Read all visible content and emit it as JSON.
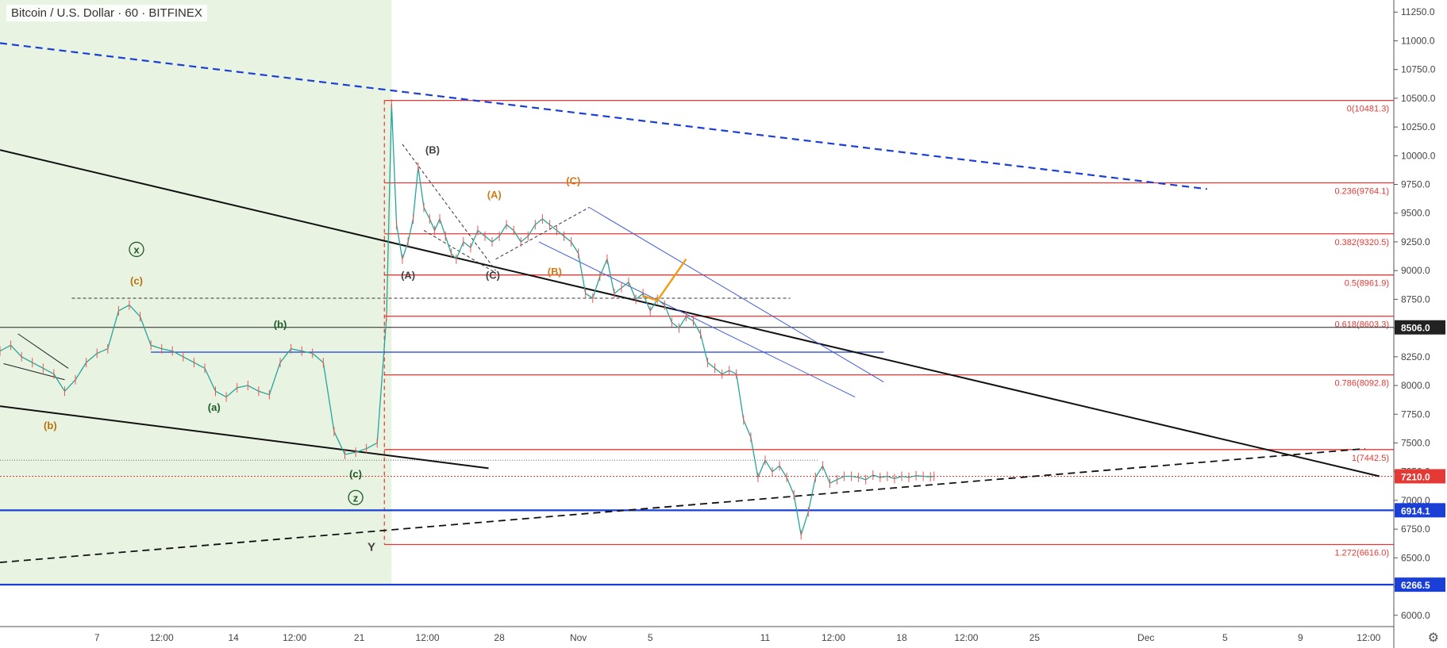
{
  "header": {
    "title": "Bitcoin / U.S. Dollar · 60 · BITFINEX"
  },
  "chart_data": {
    "type": "line",
    "title": "Bitcoin / U.S. Dollar · 60 · BITFINEX",
    "ylim": [
      5950,
      11300
    ],
    "y_ticks": [
      "11250.0",
      "11000.0",
      "10750.0",
      "10500.0",
      "10250.0",
      "10000.0",
      "9750.0",
      "9500.0",
      "9250.0",
      "9000.0",
      "8750.0",
      "8500.0",
      "8250.0",
      "8000.0",
      "7750.0",
      "7500.0",
      "7250.0",
      "7000.0",
      "6750.0",
      "6500.0",
      "6250.0",
      "6000.0"
    ],
    "x_ticks": [
      "7",
      "12:00",
      "14",
      "12:00",
      "21",
      "12:00",
      "28",
      "Nov",
      "5",
      "11",
      "12:00",
      "18",
      "12:00",
      "25",
      "Dec",
      "5",
      "9",
      "12:00"
    ],
    "price_tags": [
      {
        "label": "8506.0",
        "value": 8506.0,
        "color": "#222222"
      },
      {
        "label": "7210.0",
        "value": 7210.0,
        "color": "#e53935"
      },
      {
        "label": "6914.1",
        "value": 6914.1,
        "color": "#1a3fd6"
      },
      {
        "label": "6266.5",
        "value": 6266.5,
        "color": "#1a3fd6"
      }
    ],
    "fib_levels": [
      {
        "label": "0(10481.3)",
        "value": 10481.3
      },
      {
        "label": "0.236(9764.1)",
        "value": 9764.1
      },
      {
        "label": "0.382(9320.5)",
        "value": 9320.5
      },
      {
        "label": "0.5(8961.9)",
        "value": 8961.9
      },
      {
        "label": "0.618(8603.3)",
        "value": 8603.3
      },
      {
        "label": "0.786(8092.8)",
        "value": 8092.8
      },
      {
        "label": "1(7442.5)",
        "value": 7442.5
      },
      {
        "label": "1.272(6616.0)",
        "value": 6616.0
      }
    ],
    "wave_labels": [
      {
        "text": "(b)",
        "color": "#b8720a",
        "x": 0.7,
        "price": 7620
      },
      {
        "text": "(c)",
        "color": "#b8720a",
        "x": 1.9,
        "price": 8880
      },
      {
        "text": "x",
        "color": "#1e5c28",
        "x": 1.9,
        "price": 9150,
        "circled": true
      },
      {
        "text": "(a)",
        "color": "#1e5c28",
        "x": 2.98,
        "price": 7780
      },
      {
        "text": "(b)",
        "color": "#1e5c28",
        "x": 3.9,
        "price": 8500
      },
      {
        "text": "(c)",
        "color": "#1e5c28",
        "x": 4.95,
        "price": 7200
      },
      {
        "text": "z",
        "color": "#1e5c28",
        "x": 4.95,
        "price": 6990,
        "circled": true
      },
      {
        "text": "Y",
        "color": "#444444",
        "x": 5.17,
        "price": 6560
      },
      {
        "text": "(A)",
        "color": "#444444",
        "x": 5.68,
        "price": 8930
      },
      {
        "text": "(B)",
        "color": "#444444",
        "x": 6.02,
        "price": 10020
      },
      {
        "text": "(C)",
        "color": "#444444",
        "x": 6.86,
        "price": 8930
      },
      {
        "text": "(A)",
        "color": "#d07b1a",
        "x": 6.88,
        "price": 9630
      },
      {
        "text": "(B)",
        "color": "#d07b1a",
        "x": 7.72,
        "price": 8960
      },
      {
        "text": "(C)",
        "color": "#d07b1a",
        "x": 7.98,
        "price": 9750
      }
    ],
    "series": [
      {
        "x": [
          0.0,
          0.15,
          0.3,
          0.45,
          0.6,
          0.75,
          0.9,
          1.05,
          1.2,
          1.35,
          1.5,
          1.65,
          1.8,
          1.95,
          2.1,
          2.25,
          2.4,
          2.55,
          2.7,
          2.85,
          3.0,
          3.15,
          3.3,
          3.45,
          3.6,
          3.75,
          3.9,
          4.05,
          4.2,
          4.35,
          4.5,
          4.65,
          4.8,
          4.95,
          5.1,
          5.25,
          5.38,
          5.45,
          5.52,
          5.6,
          5.68,
          5.75,
          5.82,
          5.9,
          5.98,
          6.05,
          6.12,
          6.2,
          6.28,
          6.35,
          6.45,
          6.55,
          6.65,
          6.75,
          6.85,
          6.95,
          7.05,
          7.15,
          7.25,
          7.35,
          7.45,
          7.55,
          7.65,
          7.75,
          7.85,
          7.95,
          8.05,
          8.15,
          8.25,
          8.35,
          8.45,
          8.55,
          8.65,
          8.75,
          8.85,
          8.95,
          9.05,
          9.15,
          9.25,
          9.35,
          9.45,
          9.55,
          9.65,
          9.75,
          9.85,
          9.95,
          10.05,
          10.15,
          10.25,
          10.35,
          10.45,
          10.55,
          10.65,
          10.75,
          10.85,
          10.95,
          11.05,
          11.15,
          11.25,
          11.35,
          11.45,
          11.55,
          11.65,
          11.75,
          11.85,
          11.95,
          12.05,
          12.15,
          12.25,
          12.35,
          12.45,
          12.55,
          12.65,
          12.75,
          12.85,
          12.95,
          13.0
        ],
        "y": [
          8300,
          8350,
          8250,
          8200,
          8150,
          8100,
          7950,
          8050,
          8200,
          8280,
          8320,
          8650,
          8700,
          8600,
          8350,
          8320,
          8300,
          8250,
          8200,
          8150,
          7950,
          7900,
          7980,
          8000,
          7950,
          7920,
          8200,
          8320,
          8300,
          8280,
          8200,
          7600,
          7400,
          7420,
          7450,
          7500,
          8600,
          10450,
          9400,
          9100,
          9250,
          9450,
          9900,
          9550,
          9450,
          9350,
          9450,
          9300,
          9150,
          9100,
          9250,
          9200,
          9350,
          9300,
          9250,
          9300,
          9400,
          9350,
          9250,
          9300,
          9400,
          9450,
          9400,
          9350,
          9300,
          9250,
          9150,
          8800,
          8760,
          8950,
          9100,
          8800,
          8850,
          8900,
          8750,
          8800,
          8650,
          8750,
          8700,
          8550,
          8500,
          8600,
          8560,
          8450,
          8200,
          8150,
          8100,
          8130,
          8100,
          7700,
          7550,
          7200,
          7350,
          7250,
          7300,
          7200,
          7050,
          6700,
          6900,
          7200,
          7300,
          7150,
          7180,
          7210,
          7210,
          7200,
          7180,
          7220,
          7200,
          7210,
          7190,
          7210,
          7200,
          7215,
          7210,
          7205,
          7210
        ]
      }
    ],
    "trend_lines": [
      {
        "name": "upper-blue-dashed",
        "from": [
          0.0,
          10980
        ],
        "to": [
          16.8,
          9710
        ]
      },
      {
        "name": "black-descending",
        "from": [
          0.0,
          10050
        ],
        "to": [
          19.2,
          7210
        ]
      },
      {
        "name": "black-lower",
        "from": [
          0.0,
          7820
        ],
        "to": [
          6.8,
          7280
        ]
      },
      {
        "name": "black-dashed-rising",
        "from": [
          0.0,
          6460
        ],
        "to": [
          19.0,
          7450
        ]
      }
    ],
    "grid": false
  }
}
